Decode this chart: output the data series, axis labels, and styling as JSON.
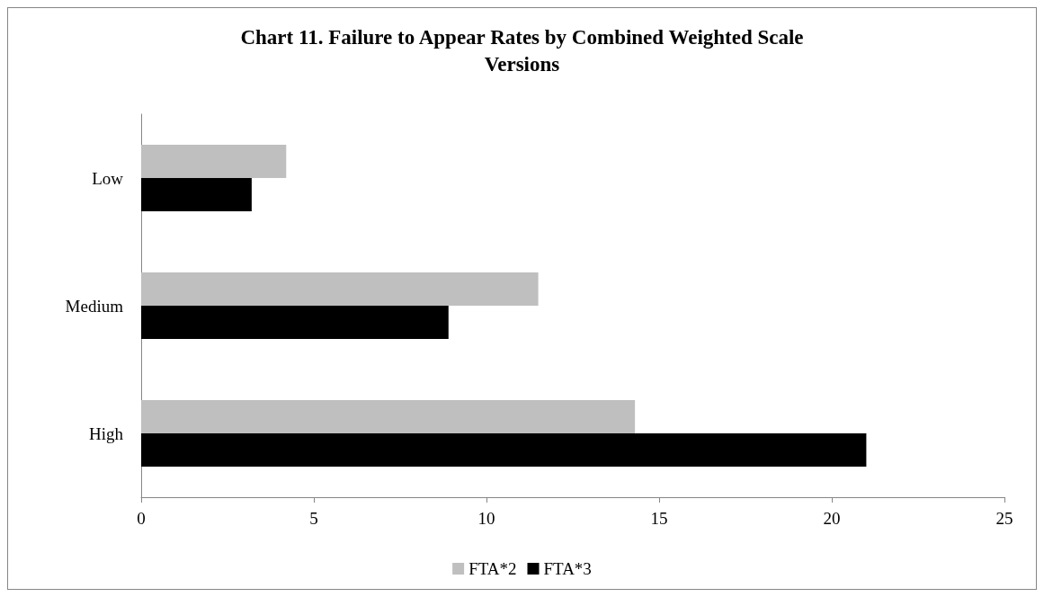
{
  "chart_data": {
    "type": "bar",
    "orientation": "horizontal",
    "title": "Chart 11. Failure to Appear Rates by Combined Weighted Scale\nVersions",
    "categories": [
      "Low",
      "Medium",
      "High"
    ],
    "series": [
      {
        "name": "FTA*2",
        "color": "#bfbfbf",
        "values": [
          4.2,
          11.5,
          14.3
        ]
      },
      {
        "name": "FTA*3",
        "color": "#000000",
        "values": [
          3.2,
          8.9,
          21.0
        ]
      }
    ],
    "xlim": [
      0,
      25
    ],
    "xticks": [
      0,
      5,
      10,
      15,
      20,
      25
    ],
    "grid": false,
    "legend": "bottom"
  }
}
